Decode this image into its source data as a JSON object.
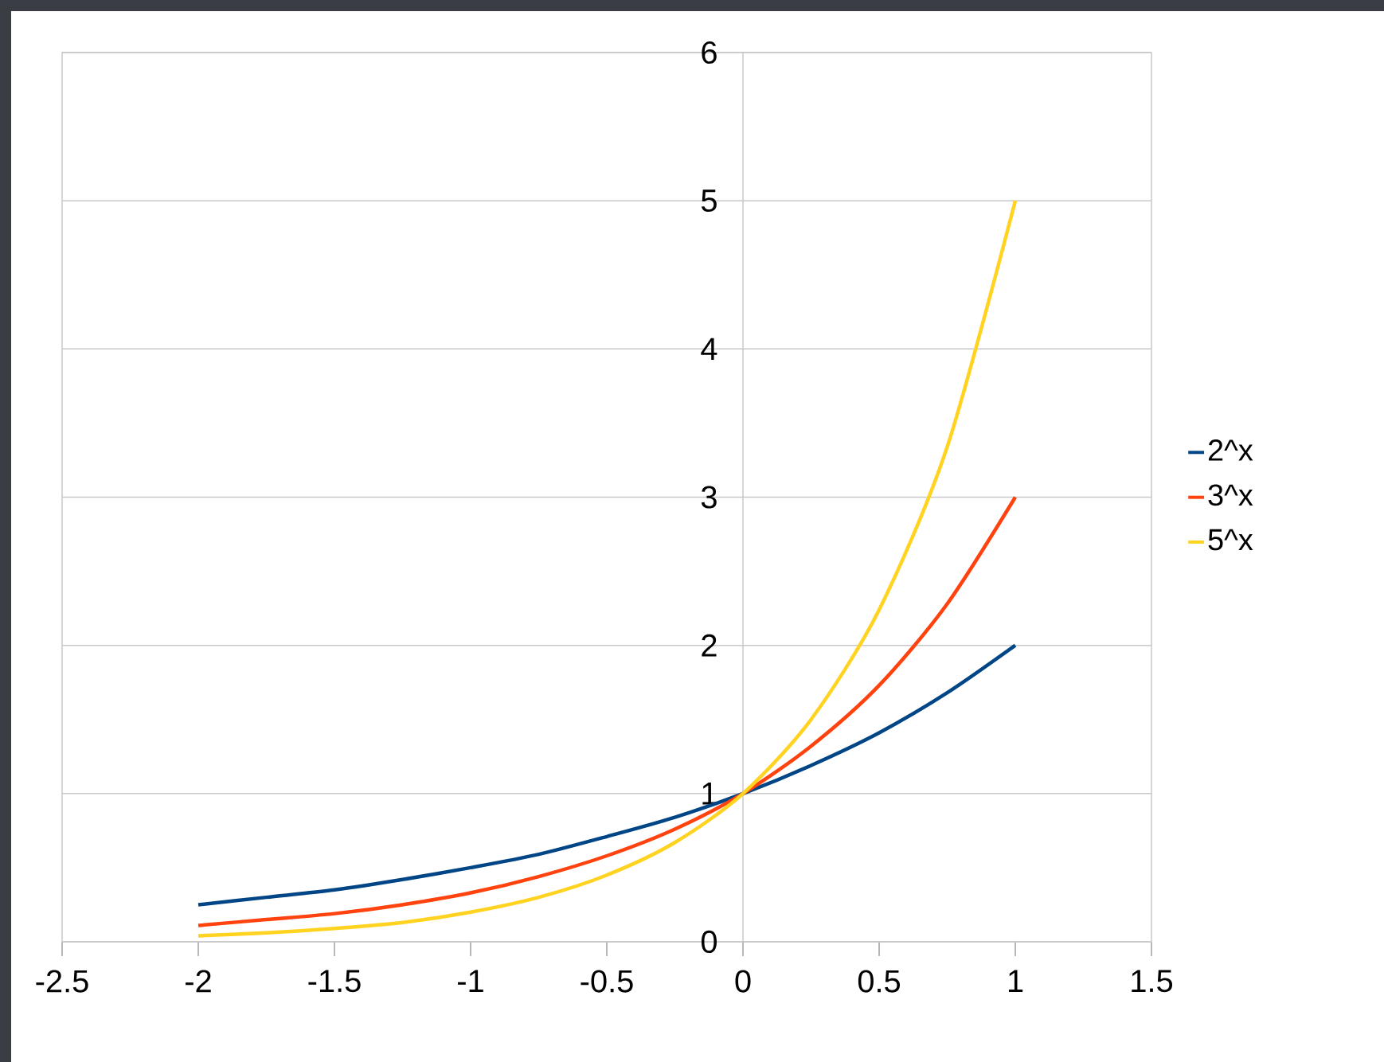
{
  "chart_data": {
    "type": "line",
    "x": [
      -2,
      -1.75,
      -1.5,
      -1.25,
      -1,
      -0.75,
      -0.5,
      -0.25,
      0,
      0.25,
      0.5,
      0.75,
      1
    ],
    "series": [
      {
        "name": "2^x",
        "color": "#004586",
        "values": [
          0.25,
          0.3,
          0.35,
          0.42,
          0.5,
          0.59,
          0.71,
          0.84,
          1,
          1.19,
          1.41,
          1.68,
          2
        ]
      },
      {
        "name": "3^x",
        "color": "#ff420e",
        "values": [
          0.11,
          0.15,
          0.19,
          0.25,
          0.33,
          0.44,
          0.58,
          0.76,
          1,
          1.32,
          1.73,
          2.28,
          3
        ]
      },
      {
        "name": "5^x",
        "color": "#ffd320",
        "values": [
          0.04,
          0.06,
          0.09,
          0.13,
          0.2,
          0.3,
          0.45,
          0.67,
          1,
          1.5,
          2.24,
          3.34,
          5
        ]
      }
    ],
    "xlim": [
      -2.5,
      1.5
    ],
    "ylim": [
      0,
      6
    ],
    "xticks": [
      -2.5,
      -2,
      -1.5,
      -1,
      -0.5,
      0,
      0.5,
      1,
      1.5
    ],
    "yticks": [
      0,
      1,
      2,
      3,
      4,
      5,
      6
    ],
    "grid": "y",
    "legend": "right"
  }
}
